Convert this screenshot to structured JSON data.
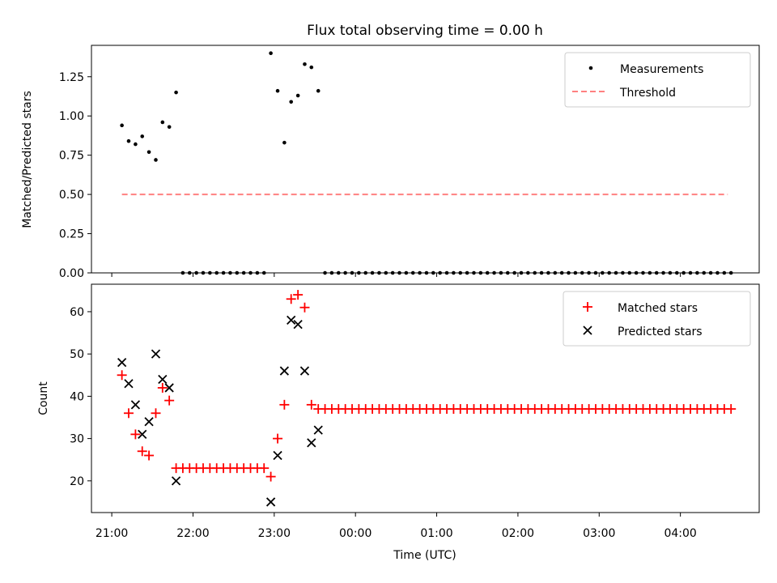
{
  "chart_data": [
    {
      "type": "scatter",
      "title": "Flux total observing time = 0.00 h",
      "xlabel": "",
      "ylabel": "Matched/Predicted stars",
      "xlim": [
        20.75,
        28.97
      ],
      "ylim": [
        0,
        1.45
      ],
      "yticks": [
        0.0,
        0.25,
        0.5,
        0.75,
        1.0,
        1.25
      ],
      "ytick_labels": [
        "0.00",
        "0.25",
        "0.50",
        "0.75",
        "1.00",
        "1.25"
      ],
      "legend": {
        "position": "top-right",
        "entries": [
          "Measurements",
          "Threshold"
        ]
      },
      "series": [
        {
          "name": "Measurements",
          "marker": "dot",
          "color": "#000000",
          "x": [
            21.125,
            21.208,
            21.292,
            21.375,
            21.458,
            21.542,
            21.625,
            21.708,
            21.792,
            22.958,
            23.042,
            23.125,
            23.208,
            23.292,
            23.375,
            23.458,
            23.542
          ],
          "y": [
            0.94,
            0.84,
            0.82,
            0.87,
            0.77,
            0.72,
            0.96,
            0.93,
            1.15,
            1.4,
            1.16,
            0.83,
            1.09,
            1.13,
            1.33,
            1.31,
            1.16
          ]
        },
        {
          "name": "Measurements (zeros)",
          "marker": "dot",
          "color": "#000000",
          "x_start": 21.875,
          "x_step": 0.0833,
          "count_a": 13,
          "x_start_b": 23.625,
          "count_b": 61,
          "y": 0
        },
        {
          "name": "Threshold",
          "style": "dashed",
          "color": "#ff8080",
          "x": [
            21.125,
            28.583
          ],
          "y": [
            0.5,
            0.5
          ]
        }
      ]
    },
    {
      "type": "scatter",
      "title": "",
      "xlabel": "Time (UTC)",
      "ylabel": "Count",
      "xlim": [
        20.75,
        28.97
      ],
      "ylim": [
        12.5,
        66.5
      ],
      "yticks": [
        20,
        30,
        40,
        50,
        60
      ],
      "ytick_labels": [
        "20",
        "30",
        "40",
        "50",
        "60"
      ],
      "xticks": [
        21,
        22,
        23,
        24,
        25,
        26,
        27,
        28
      ],
      "xtick_labels": [
        "21:00",
        "22:00",
        "23:00",
        "00:00",
        "01:00",
        "02:00",
        "03:00",
        "04:00"
      ],
      "legend": {
        "position": "top-right",
        "entries": [
          "Matched stars",
          "Predicted stars"
        ]
      },
      "series": [
        {
          "name": "Matched stars",
          "marker": "plus",
          "color": "#ff0000",
          "x": [
            21.125,
            21.208,
            21.292,
            21.375,
            21.458,
            21.542,
            21.625,
            21.708,
            21.792,
            22.958,
            23.042,
            23.125,
            23.208,
            23.292,
            23.375,
            23.458
          ],
          "y": [
            45,
            36,
            31,
            27,
            26,
            36,
            42,
            39,
            23,
            21,
            30,
            38,
            63,
            64,
            61,
            38
          ]
        },
        {
          "name": "Matched stars (flat)",
          "marker": "plus",
          "color": "#ff0000",
          "x_start": 21.875,
          "x_step": 0.0833,
          "count_a": 13,
          "y_a": 23,
          "x_start_b": 23.542,
          "count_b": 62,
          "y_b": 37
        },
        {
          "name": "Predicted stars",
          "marker": "x",
          "color": "#000000",
          "x": [
            21.125,
            21.208,
            21.292,
            21.375,
            21.458,
            21.542,
            21.625,
            21.708,
            21.792,
            22.958,
            23.042,
            23.125,
            23.208,
            23.292,
            23.375,
            23.458,
            23.542
          ],
          "y": [
            48,
            43,
            38,
            31,
            34,
            50,
            44,
            42,
            20,
            15,
            26,
            46,
            58,
            57,
            46,
            29,
            32
          ]
        }
      ]
    }
  ]
}
